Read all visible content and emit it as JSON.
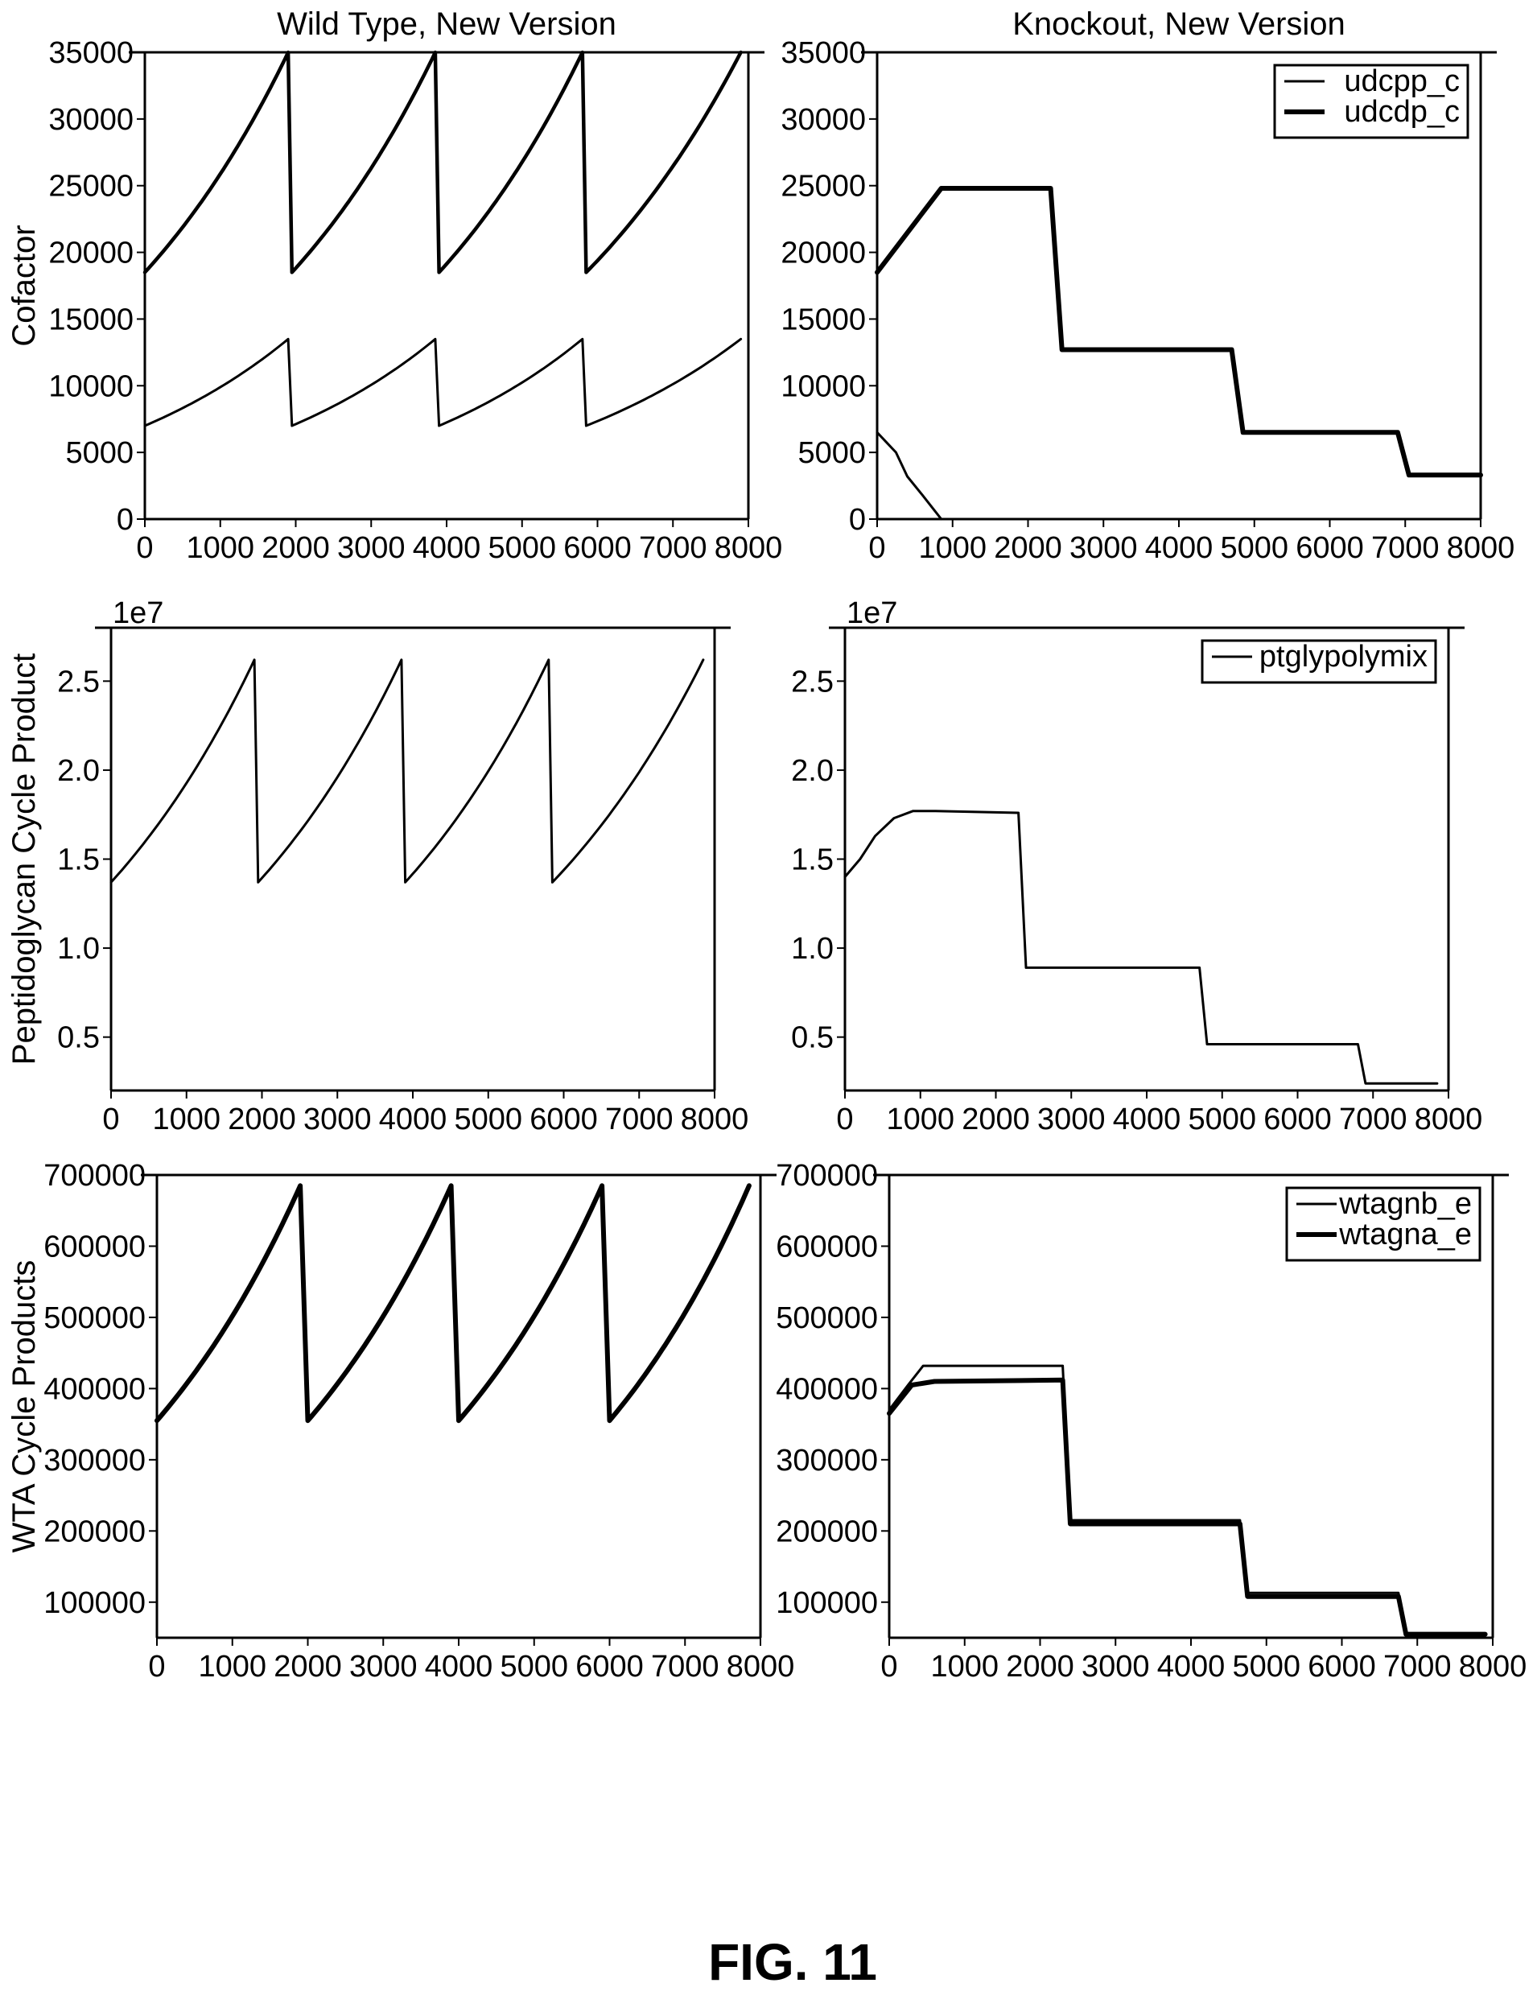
{
  "figure": {
    "caption": "FIG. 11"
  },
  "chart_data": [
    {
      "id": "wt-cofactor",
      "type": "line",
      "title": "Wild Type, New Version",
      "xlabel": "",
      "ylabel": "Cofactor",
      "xlim": [
        0,
        8000
      ],
      "ylim": [
        0,
        35000
      ],
      "xticks": [
        "0",
        "1000",
        "2000",
        "3000",
        "4000",
        "5000",
        "6000",
        "7000",
        "8000"
      ],
      "yticks": [
        "0",
        "5000",
        "10000",
        "15000",
        "20000",
        "25000",
        "30000",
        "35000"
      ],
      "legend": null,
      "series": [
        {
          "key": "thick",
          "width": 4.5,
          "growth": "exp",
          "points": [
            [
              0,
              18500
            ],
            [
              1900,
              35000
            ],
            [
              1950,
              18500
            ],
            [
              3850,
              35000
            ],
            [
              3900,
              18500
            ],
            [
              5800,
              35000
            ],
            [
              5850,
              18500
            ],
            [
              7900,
              35000
            ]
          ]
        },
        {
          "key": "thin",
          "width": 3,
          "growth": "exp",
          "points": [
            [
              0,
              7000
            ],
            [
              1900,
              13500
            ],
            [
              1950,
              7000
            ],
            [
              3850,
              13500
            ],
            [
              3900,
              7000
            ],
            [
              5800,
              13500
            ],
            [
              5850,
              7000
            ],
            [
              7900,
              13500
            ]
          ]
        }
      ]
    },
    {
      "id": "ko-cofactor",
      "type": "line",
      "title": "Knockout, New Version",
      "xlabel": "",
      "ylabel": "",
      "xlim": [
        0,
        8000
      ],
      "ylim": [
        0,
        35000
      ],
      "xticks": [
        "0",
        "1000",
        "2000",
        "3000",
        "4000",
        "5000",
        "6000",
        "7000",
        "8000"
      ],
      "yticks": [
        "0",
        "5000",
        "10000",
        "15000",
        "20000",
        "25000",
        "30000",
        "35000"
      ],
      "legend": {
        "position": "top-right",
        "entries": [
          "udcpp_c",
          "udcdp_c"
        ]
      },
      "series": [
        {
          "name": "udcdp_c",
          "width": 6,
          "growth": "lin",
          "points": [
            [
              0,
              18500
            ],
            [
              850,
              24800
            ],
            [
              2300,
              24800
            ],
            [
              2450,
              12700
            ],
            [
              4700,
              12700
            ],
            [
              4850,
              6500
            ],
            [
              6900,
              6500
            ],
            [
              7050,
              3300
            ],
            [
              8000,
              3300
            ]
          ]
        },
        {
          "name": "udcpp_c",
          "width": 3,
          "growth": "lin",
          "points": [
            [
              0,
              6500
            ],
            [
              250,
              5000
            ],
            [
              400,
              3200
            ],
            [
              600,
              1800
            ],
            [
              850,
              0
            ]
          ]
        }
      ]
    },
    {
      "id": "wt-peptidoglycan",
      "type": "line",
      "title": "",
      "xlabel": "",
      "ylabel": "Peptidoglycan Cycle Product",
      "scale_label": "1e7",
      "xlim": [
        0,
        8000
      ],
      "ylim": [
        0.2,
        2.8
      ],
      "xticks": [
        "0",
        "1000",
        "2000",
        "3000",
        "4000",
        "5000",
        "6000",
        "7000",
        "8000"
      ],
      "yticks": [
        "0.5",
        "1.0",
        "1.5",
        "2.0",
        "2.5"
      ],
      "legend": null,
      "series": [
        {
          "key": "ptg-wt",
          "width": 3,
          "growth": "exp",
          "points": [
            [
              0,
              1.37
            ],
            [
              1900,
              2.62
            ],
            [
              1950,
              1.37
            ],
            [
              3850,
              2.62
            ],
            [
              3900,
              1.37
            ],
            [
              5800,
              2.62
            ],
            [
              5850,
              1.37
            ],
            [
              7850,
              2.62
            ]
          ]
        }
      ]
    },
    {
      "id": "ko-peptidoglycan",
      "type": "line",
      "title": "",
      "xlabel": "",
      "ylabel": "",
      "scale_label": "1e7",
      "xlim": [
        0,
        8000
      ],
      "ylim": [
        0.2,
        2.8
      ],
      "xticks": [
        "0",
        "1000",
        "2000",
        "3000",
        "4000",
        "5000",
        "6000",
        "7000",
        "8000"
      ],
      "yticks": [
        "0.5",
        "1.0",
        "1.5",
        "2.0",
        "2.5"
      ],
      "legend": {
        "position": "top-right",
        "entries": [
          "ptglypolymix"
        ]
      },
      "series": [
        {
          "name": "ptglypolymix",
          "width": 3,
          "growth": "lin",
          "points": [
            [
              0,
              1.4
            ],
            [
              200,
              1.5
            ],
            [
              400,
              1.63
            ],
            [
              650,
              1.73
            ],
            [
              900,
              1.77
            ],
            [
              1200,
              1.77
            ],
            [
              2300,
              1.76
            ],
            [
              2400,
              0.89
            ],
            [
              4700,
              0.89
            ],
            [
              4800,
              0.46
            ],
            [
              6800,
              0.46
            ],
            [
              6900,
              0.24
            ],
            [
              7850,
              0.24
            ]
          ]
        }
      ]
    },
    {
      "id": "wt-wta",
      "type": "line",
      "title": "",
      "xlabel": "",
      "ylabel": "WTA Cycle Products",
      "xlim": [
        0,
        8000
      ],
      "ylim": [
        50000,
        700000
      ],
      "xticks": [
        "0",
        "1000",
        "2000",
        "3000",
        "4000",
        "5000",
        "6000",
        "7000",
        "8000"
      ],
      "yticks": [
        "100000",
        "200000",
        "300000",
        "400000",
        "500000",
        "600000",
        "700000"
      ],
      "legend": null,
      "series": [
        {
          "key": "wta-wt",
          "width": 6,
          "growth": "exp",
          "points": [
            [
              0,
              355000
            ],
            [
              1900,
              685000
            ],
            [
              2000,
              355000
            ],
            [
              3900,
              685000
            ],
            [
              4000,
              355000
            ],
            [
              5900,
              685000
            ],
            [
              6000,
              355000
            ],
            [
              7850,
              685000
            ]
          ]
        }
      ]
    },
    {
      "id": "ko-wta",
      "type": "line",
      "title": "",
      "xlabel": "",
      "ylabel": "",
      "xlim": [
        0,
        8000
      ],
      "ylim": [
        50000,
        700000
      ],
      "xticks": [
        "0",
        "1000",
        "2000",
        "3000",
        "4000",
        "5000",
        "6000",
        "7000",
        "8000"
      ],
      "yticks": [
        "100000",
        "200000",
        "300000",
        "400000",
        "500000",
        "600000",
        "700000"
      ],
      "legend": {
        "position": "top-right",
        "entries": [
          "wtagnb_e",
          "wtagna_e"
        ]
      },
      "series": [
        {
          "name": "wtagnb_e",
          "width": 3,
          "growth": "lin",
          "points": [
            [
              0,
              370000
            ],
            [
              250,
              405000
            ],
            [
              450,
              432000
            ],
            [
              2300,
              432000
            ],
            [
              2400,
              215000
            ],
            [
              4650,
              215000
            ],
            [
              4750,
              113000
            ],
            [
              6750,
              113000
            ],
            [
              6850,
              55000
            ],
            [
              7900,
              55000
            ]
          ]
        },
        {
          "name": "wtagna_e",
          "width": 6,
          "growth": "lin",
          "points": [
            [
              0,
              365000
            ],
            [
              300,
              405000
            ],
            [
              600,
              410000
            ],
            [
              2300,
              412000
            ],
            [
              2400,
              210000
            ],
            [
              4650,
              210000
            ],
            [
              4750,
              108000
            ],
            [
              6750,
              108000
            ],
            [
              6850,
              55000
            ],
            [
              7900,
              55000
            ]
          ]
        }
      ]
    }
  ]
}
